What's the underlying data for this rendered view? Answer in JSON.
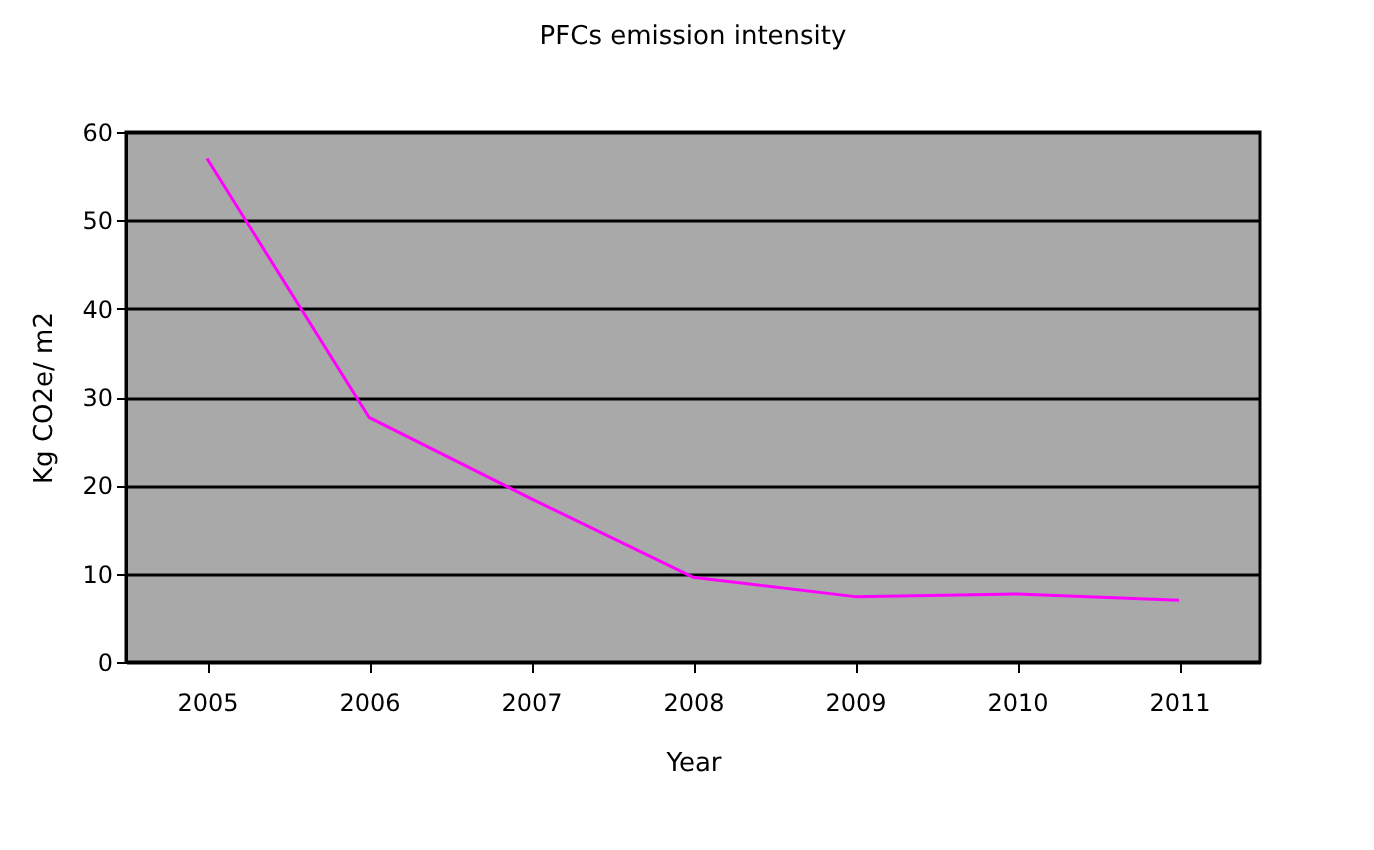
{
  "chart_data": {
    "type": "line",
    "title": "PFCs emission intensity",
    "xlabel": "Year",
    "ylabel": "Kg CO2e/ m2",
    "categories": [
      "2005",
      "2006",
      "2007",
      "2008",
      "2009",
      "2010",
      "2011"
    ],
    "series": [
      {
        "color": "#ff00ff",
        "values": [
          57,
          27.7,
          18.5,
          9.6,
          7.4,
          7.7,
          7
        ]
      }
    ],
    "ylim": [
      0,
      60
    ],
    "yticks": [
      0,
      10,
      20,
      30,
      40,
      50,
      60
    ],
    "grid": "y",
    "marker": "none",
    "line_style": "solid"
  }
}
